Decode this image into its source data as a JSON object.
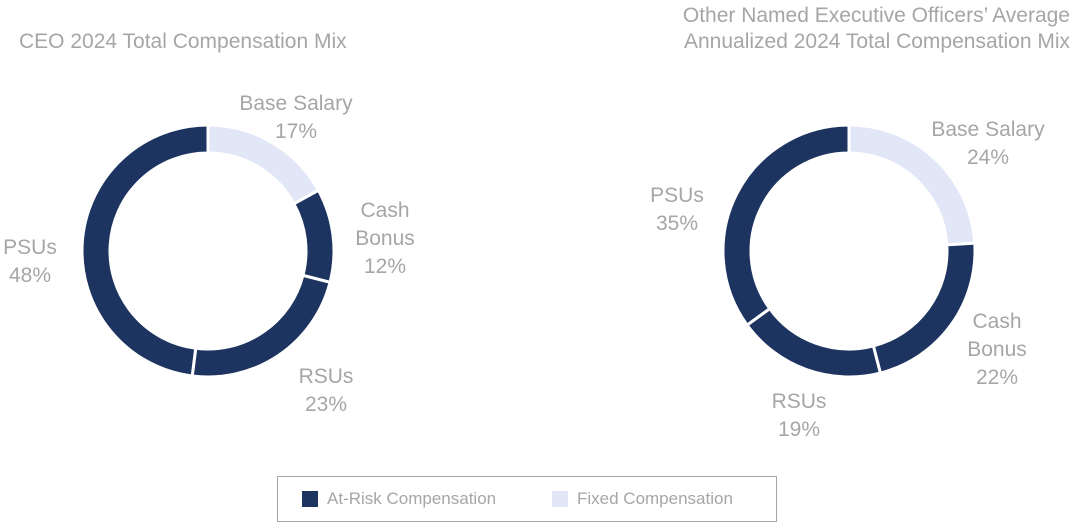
{
  "colors": {
    "at_risk": "#1d3461",
    "fixed": "#e1e7f6",
    "text": "#a6a6a6",
    "separator": "#ffffff"
  },
  "legend": {
    "items": [
      {
        "label": "At-Risk Compensation",
        "category": "at_risk"
      },
      {
        "label": "Fixed Compensation",
        "category": "fixed"
      }
    ]
  },
  "chart_data": [
    {
      "type": "pie",
      "title": [
        "CEO 2024 Total Compensation Mix"
      ],
      "slices": [
        {
          "label": [
            "Base Salary",
            "17%"
          ],
          "value": 17,
          "category": "fixed"
        },
        {
          "label": [
            "Cash",
            "Bonus",
            "12%"
          ],
          "value": 12,
          "category": "at_risk"
        },
        {
          "label": [
            "RSUs",
            "23%"
          ],
          "value": 23,
          "category": "at_risk"
        },
        {
          "label": [
            "PSUs",
            "48%"
          ],
          "value": 48,
          "category": "at_risk"
        }
      ]
    },
    {
      "type": "pie",
      "title": [
        "Other Named Executive Officers’ Average",
        "Annualized 2024 Total Compensation Mix"
      ],
      "slices": [
        {
          "label": [
            "Base Salary",
            "24%"
          ],
          "value": 24,
          "category": "fixed"
        },
        {
          "label": [
            "Cash",
            "Bonus",
            "22%"
          ],
          "value": 22,
          "category": "at_risk"
        },
        {
          "label": [
            "RSUs",
            "19%"
          ],
          "value": 19,
          "category": "at_risk"
        },
        {
          "label": [
            "PSUs",
            "35%"
          ],
          "value": 35,
          "category": "at_risk"
        }
      ]
    }
  ]
}
